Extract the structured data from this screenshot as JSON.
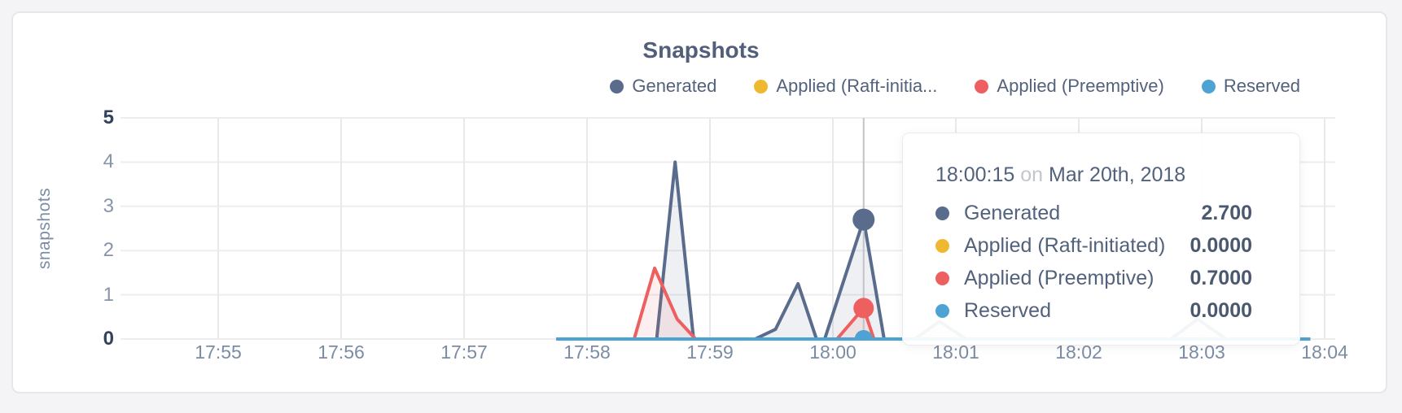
{
  "chart": {
    "title": "Snapshots",
    "y_axis": {
      "label": "snapshots",
      "ticks": [
        "5",
        "4",
        "3",
        "2",
        "1",
        "0"
      ]
    },
    "x_axis": {
      "ticks": [
        "17:55",
        "17:56",
        "17:57",
        "17:58",
        "17:59",
        "18:00",
        "18:01",
        "18:02",
        "18:03",
        "18:04"
      ]
    },
    "legend": [
      {
        "label": "Generated",
        "color": "#5a6c8c"
      },
      {
        "label": "Applied (Raft-initia...",
        "color": "#f0b730"
      },
      {
        "label": "Applied (Preemptive)",
        "color": "#ee5f5f"
      },
      {
        "label": "Reserved",
        "color": "#4da3d3"
      }
    ]
  },
  "chart_data": {
    "type": "area",
    "title": "Snapshots",
    "ylabel": "snapshots",
    "ylim": [
      0,
      5
    ],
    "y_tick_values": [
      5,
      4,
      3,
      2,
      1,
      0
    ],
    "x_tick_labels": [
      "17:55",
      "17:56",
      "17:57",
      "17:58",
      "17:59",
      "18:00",
      "18:01",
      "18:02",
      "18:03",
      "18:04"
    ],
    "x_unit": "seconds after 17:55:00 on Mar 20th, 2018",
    "grid": "on",
    "legend_position": "top-right",
    "series": [
      {
        "name": "Generated",
        "color": "#5a6c8c",
        "points": [
          [
            165,
            0
          ],
          [
            214,
            0
          ],
          [
            223,
            4.0
          ],
          [
            232,
            0
          ],
          [
            262,
            0
          ],
          [
            272,
            0.22
          ],
          [
            283,
            1.25
          ],
          [
            292,
            0
          ],
          [
            296,
            0
          ],
          [
            315,
            2.7
          ],
          [
            325,
            0
          ],
          [
            340,
            0
          ],
          [
            352,
            0.4
          ],
          [
            365,
            0
          ],
          [
            465,
            0
          ],
          [
            478,
            0.45
          ],
          [
            492,
            0
          ],
          [
            533,
            0
          ]
        ]
      },
      {
        "name": "Applied (Raft-initiated)",
        "color": "#f0b730",
        "points": [
          [
            165,
            0
          ],
          [
            533,
            0
          ]
        ]
      },
      {
        "name": "Applied (Preemptive)",
        "color": "#ee5f5f",
        "points": [
          [
            165,
            0
          ],
          [
            203,
            0
          ],
          [
            213,
            1.6
          ],
          [
            224,
            0.45
          ],
          [
            233,
            0
          ],
          [
            302,
            0
          ],
          [
            315,
            0.7
          ],
          [
            320,
            0
          ],
          [
            533,
            0
          ]
        ]
      },
      {
        "name": "Reserved",
        "color": "#4da3d3",
        "points": [
          [
            165,
            0
          ],
          [
            533,
            0
          ]
        ]
      }
    ]
  },
  "hover": {
    "time_label": "18:00:15",
    "t_seconds": 315,
    "values": [
      2.7,
      0,
      0.7,
      0
    ]
  },
  "tooltip": {
    "time": "18:00:15",
    "on_word": "on",
    "date": "Mar 20th, 2018",
    "rows": [
      {
        "label": "Generated",
        "value": "2.700",
        "color": "#5a6c8c"
      },
      {
        "label": "Applied (Raft-initiated)",
        "value": "0.0000",
        "color": "#f0b730"
      },
      {
        "label": "Applied (Preemptive)",
        "value": "0.7000",
        "color": "#ee5f5f"
      },
      {
        "label": "Reserved",
        "value": "0.0000",
        "color": "#4da3d3"
      }
    ]
  }
}
